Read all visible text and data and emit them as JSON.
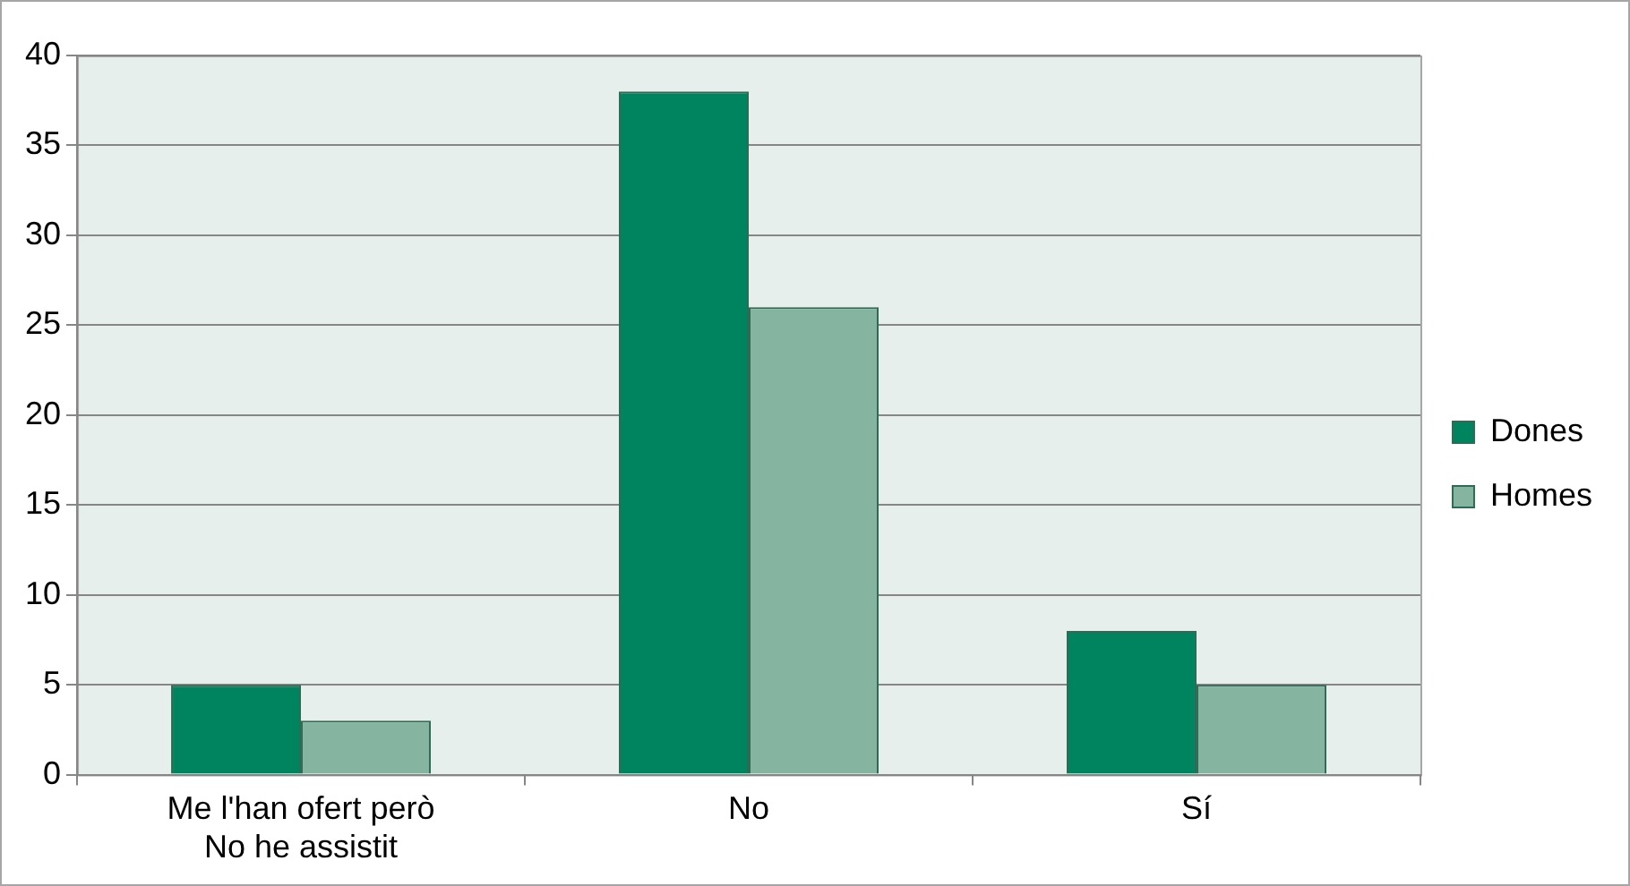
{
  "chart_data": {
    "type": "bar",
    "categories": [
      "Me l'han ofert però No he assistit",
      "No",
      "Sí"
    ],
    "series": [
      {
        "name": "Dones",
        "color": "#00835f",
        "values": [
          5,
          38,
          8
        ]
      },
      {
        "name": "Homes",
        "color": "#85b5a1",
        "values": [
          3,
          26,
          5
        ]
      }
    ],
    "ylim": [
      0,
      40
    ],
    "yticks": [
      0,
      5,
      10,
      15,
      20,
      25,
      30,
      35,
      40
    ],
    "grid": "y",
    "legend": "right"
  }
}
